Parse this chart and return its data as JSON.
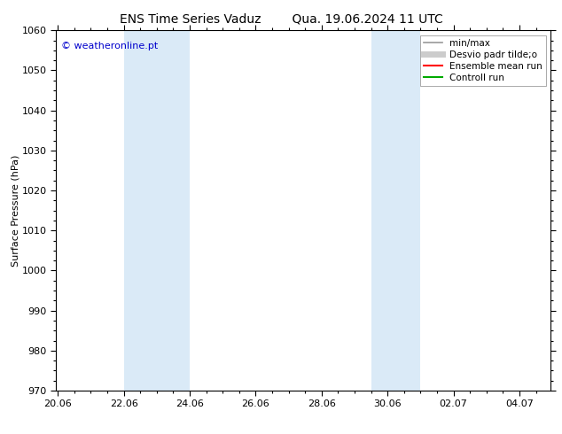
{
  "title_left": "ENS Time Series Vaduz",
  "title_right": "Qua. 19.06.2024 11 UTC",
  "ylabel": "Surface Pressure (hPa)",
  "ylim": [
    970,
    1060
  ],
  "yticks": [
    970,
    980,
    990,
    1000,
    1010,
    1020,
    1030,
    1040,
    1050,
    1060
  ],
  "xtick_labels": [
    "20.06",
    "22.06",
    "24.06",
    "26.06",
    "28.06",
    "30.06",
    "02.07",
    "04.07"
  ],
  "xtick_positions": [
    0.0,
    2.0,
    4.0,
    6.0,
    8.0,
    10.0,
    12.0,
    14.0
  ],
  "xlim": [
    -0.05,
    14.95
  ],
  "shaded_regions": [
    {
      "x_start": 2.0,
      "x_end": 4.0,
      "color": "#daeaf7"
    },
    {
      "x_start": 9.5,
      "x_end": 11.0,
      "color": "#daeaf7"
    }
  ],
  "copyright_text": "© weatheronline.pt",
  "copyright_color": "#0000cc",
  "background_color": "#ffffff",
  "legend_entries": [
    {
      "label": "min/max",
      "color": "#999999",
      "lw": 1.2,
      "ls": "-"
    },
    {
      "label": "Desvio padr tilde;o",
      "color": "#cccccc",
      "lw": 5,
      "ls": "-"
    },
    {
      "label": "Ensemble mean run",
      "color": "#ff0000",
      "lw": 1.5,
      "ls": "-"
    },
    {
      "label": "Controll run",
      "color": "#00aa00",
      "lw": 1.5,
      "ls": "-"
    }
  ],
  "title_fontsize": 10,
  "axis_label_fontsize": 8,
  "tick_fontsize": 8
}
